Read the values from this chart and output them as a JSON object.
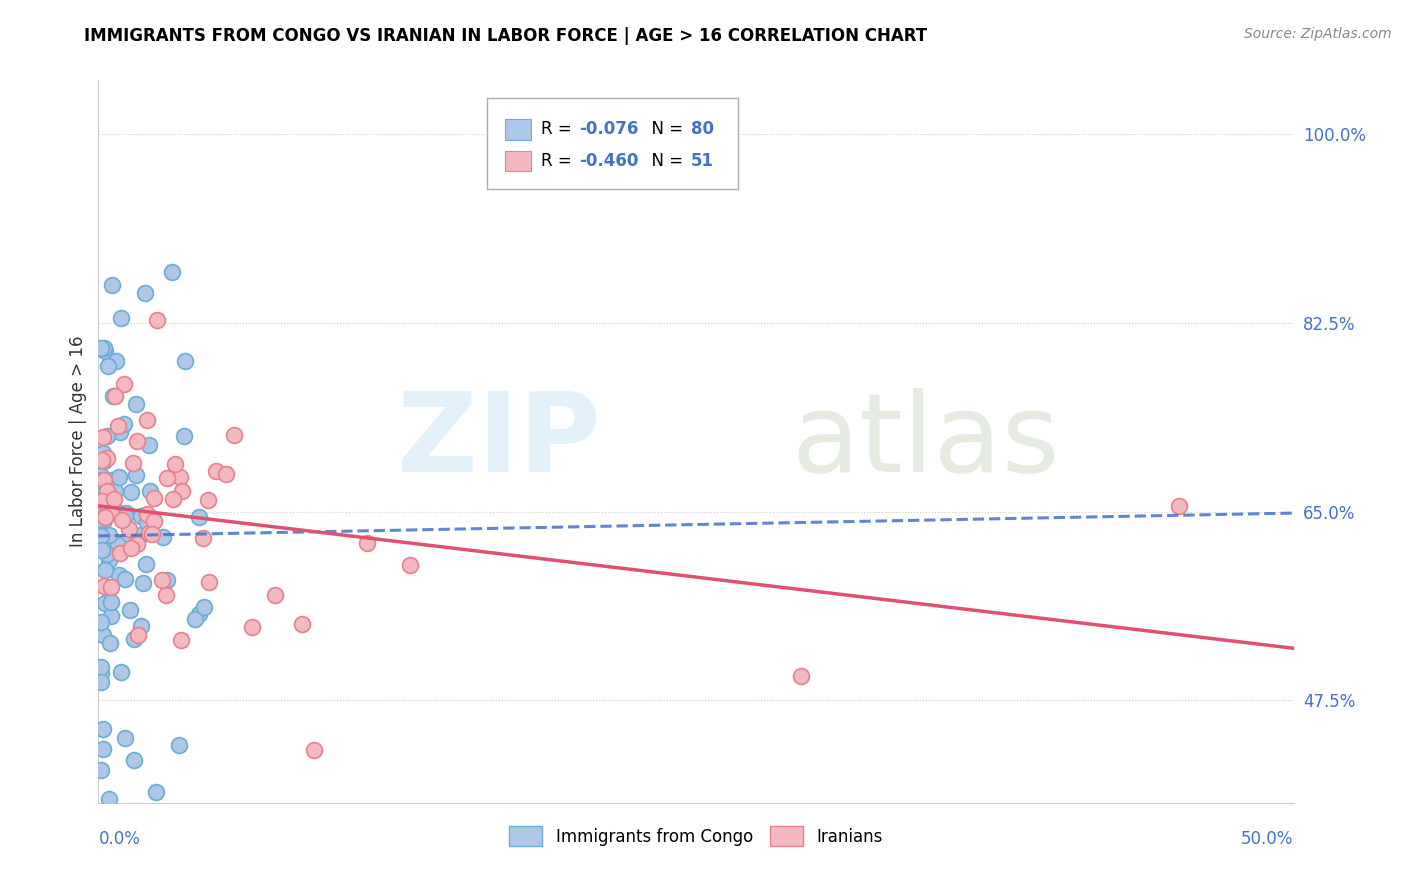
{
  "title": "IMMIGRANTS FROM CONGO VS IRANIAN IN LABOR FORCE | AGE > 16 CORRELATION CHART",
  "source": "Source: ZipAtlas.com",
  "ylabel": "In Labor Force | Age > 16",
  "right_yticks": [
    "100.0%",
    "82.5%",
    "65.0%",
    "47.5%"
  ],
  "right_ytick_values": [
    1.0,
    0.825,
    0.65,
    0.475
  ],
  "xmin": 0.0,
  "xmax": 0.5,
  "ymin": 0.38,
  "ymax": 1.05,
  "congo_color": "#aec6e8",
  "congo_edge_color": "#6aadd5",
  "iranian_color": "#f4b8c1",
  "iranian_edge_color": "#e8808e",
  "congo_line_color": "#4472c4",
  "iranian_line_color": "#e05070",
  "congo_R": -0.076,
  "congo_N": 80,
  "iranian_R": -0.46,
  "iranian_N": 51
}
